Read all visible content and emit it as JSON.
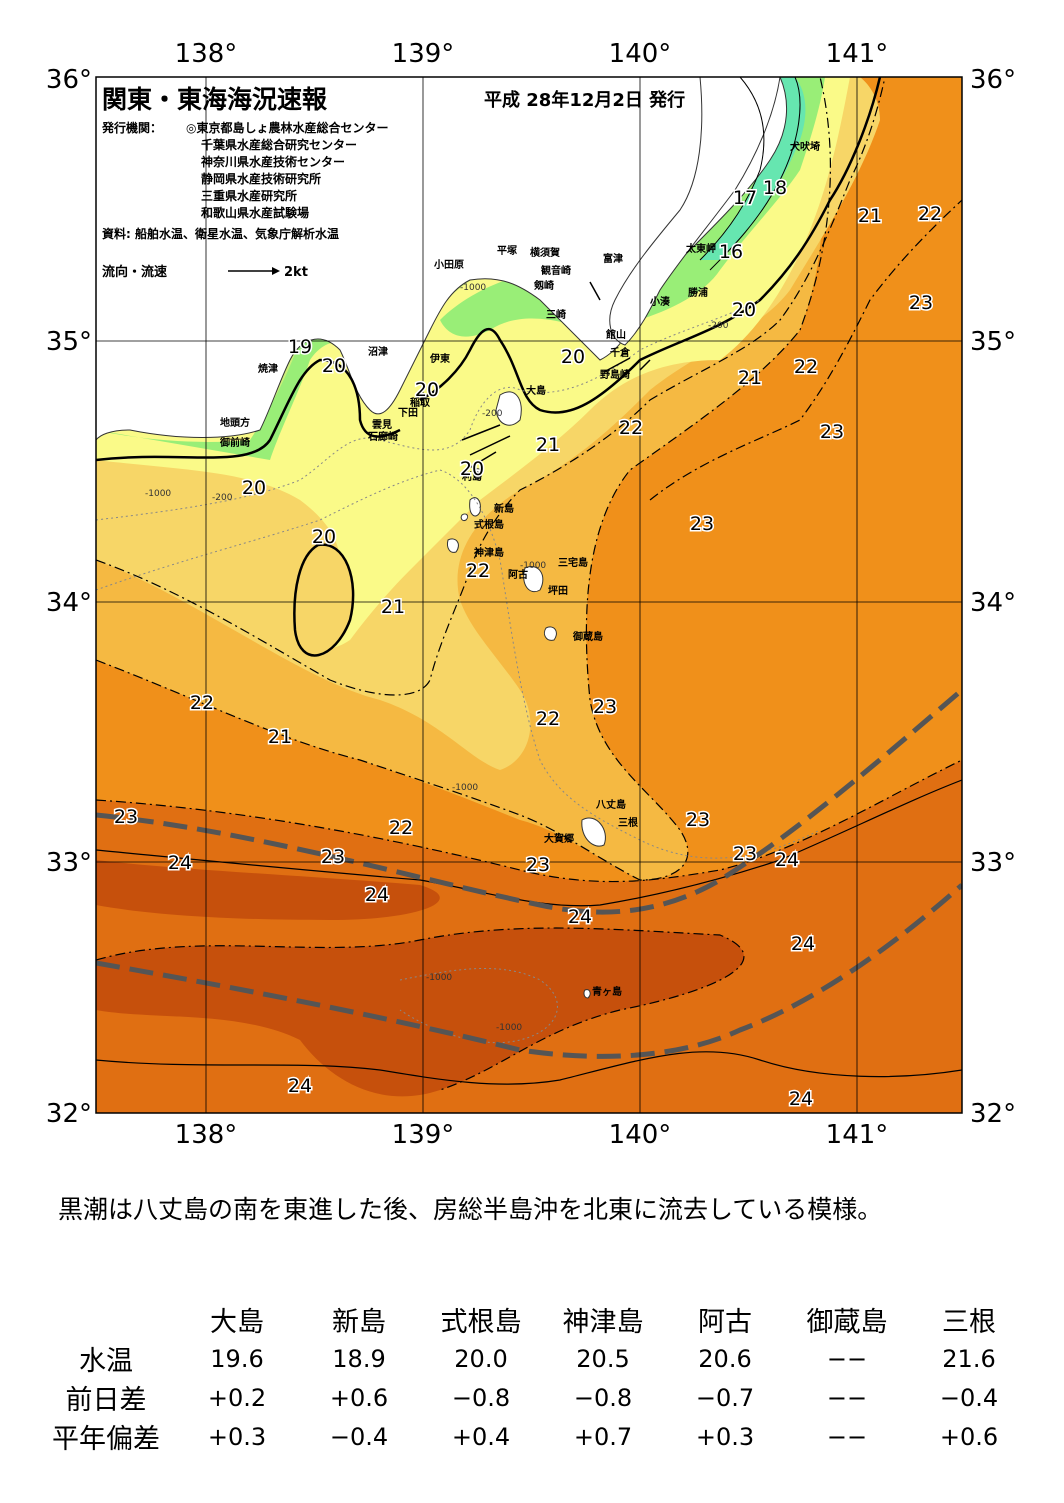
{
  "map": {
    "title": "関東・東海海況速報",
    "issue_date": "平成 28年12月2日 発行",
    "publisher_label": "発行機関：",
    "publishers": [
      "◎東京都島しょ農林水産総合センター",
      "千葉県水産総合研究センター",
      "神奈川県水産技術センター",
      "静岡県水産技術研究所",
      "三重県水産研究所",
      "和歌山県水産試験場"
    ],
    "source": "資料: 船舶水温、衛星水温、気象庁解析水温",
    "current_legend_label": "流向・流速",
    "current_legend_value": "2kt",
    "lon_labels": [
      "138°",
      "139°",
      "140°",
      "141°"
    ],
    "lat_labels": [
      "36°",
      "35°",
      "34°",
      "33°",
      "32°"
    ],
    "colors": {
      "land": "#ffffff",
      "t16": "#66ccff",
      "t17": "#66e6b0",
      "t18": "#99ee77",
      "t19": "#ccf07a",
      "t20": "#fafa88",
      "t21": "#f7d667",
      "t22": "#f5b942",
      "t23": "#f0901a",
      "t24": "#e06f12",
      "t25": "#c6500c",
      "kuroshio_line": "#555555"
    },
    "place_names": [
      "犬吠埼",
      "太東岬",
      "勝浦",
      "小湊",
      "富津",
      "横須賀",
      "観音崎",
      "平塚",
      "小田原",
      "剱崎",
      "三崎",
      "館山",
      "千倉",
      "野島崎",
      "沼津",
      "伊東",
      "焼津",
      "稲取",
      "下田",
      "雲見",
      "石廊崎",
      "地頭方",
      "御前崎",
      "大島",
      "利島",
      "新島",
      "式根島",
      "神津島",
      "三宅島",
      "阿古",
      "坪田",
      "御蔵島",
      "八丈島",
      "三根",
      "大賀郷",
      "青ヶ島"
    ],
    "isotherm_labels": [
      "16",
      "17",
      "18",
      "19",
      "20",
      "20",
      "20",
      "20",
      "20",
      "20",
      "20",
      "21",
      "21",
      "21",
      "21",
      "21",
      "22",
      "22",
      "22",
      "22",
      "22",
      "22",
      "22",
      "23",
      "23",
      "23",
      "23",
      "23",
      "23",
      "23",
      "23",
      "23",
      "24",
      "24",
      "24",
      "24",
      "24",
      "24",
      "24"
    ],
    "depth_labels": [
      "-200",
      "-1000"
    ]
  },
  "summary": "黒潮は八丈島の南を東進した後、房総半島沖を北東に流去している模様。",
  "table": {
    "headers": [
      "大島",
      "新島",
      "式根島",
      "神津島",
      "阿古",
      "御蔵島",
      "三根"
    ],
    "rows": [
      {
        "label": "水温",
        "values": [
          "19.6",
          "18.9",
          "20.0",
          "20.5",
          "20.6",
          "−−",
          "21.6"
        ]
      },
      {
        "label": "前日差",
        "values": [
          "+0.2",
          "+0.6",
          "−0.8",
          "−0.8",
          "−0.7",
          "−−",
          "−0.4"
        ]
      },
      {
        "label": "平年偏差",
        "values": [
          "+0.3",
          "−0.4",
          "+0.4",
          "+0.7",
          "+0.3",
          "−−",
          "+0.6"
        ]
      }
    ]
  }
}
